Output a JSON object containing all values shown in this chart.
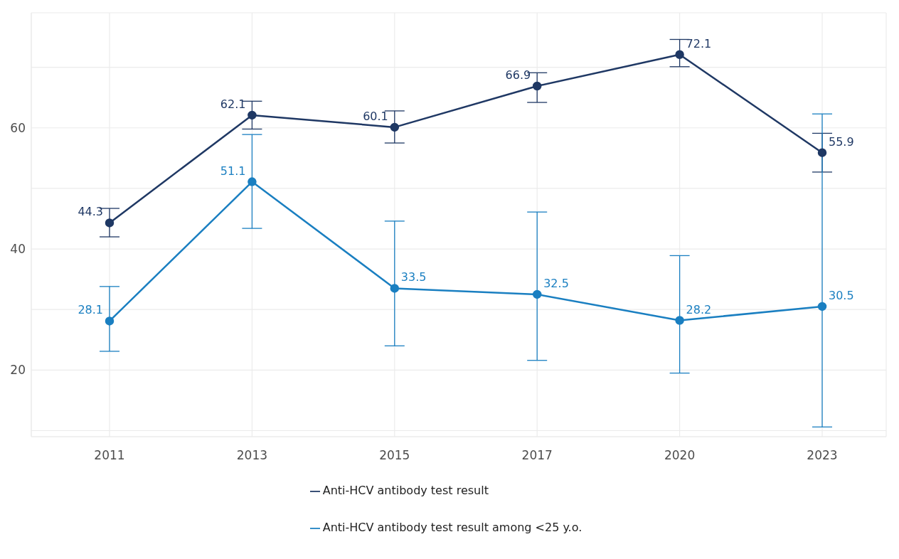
{
  "chart_data": {
    "type": "line",
    "categories": [
      "2011",
      "2013",
      "2015",
      "2017",
      "2020",
      "2023"
    ],
    "series": [
      {
        "name": "Anti-HCV antibody test result",
        "color": "#1f3864",
        "values": [
          44.3,
          62.1,
          60.1,
          66.9,
          72.1,
          55.9
        ],
        "errors": [
          [
            42.0,
            46.7
          ],
          [
            59.8,
            64.4
          ],
          [
            57.5,
            62.8
          ],
          [
            64.2,
            69.1
          ],
          [
            70.1,
            74.6
          ],
          [
            52.7,
            59.1
          ]
        ]
      },
      {
        "name": "Anti-HCV antibody test result among <25 y.o.",
        "color": "#1a7fc1",
        "values": [
          28.1,
          51.1,
          33.5,
          32.5,
          28.2,
          30.5
        ],
        "errors": [
          [
            23.1,
            33.8
          ],
          [
            43.4,
            58.9
          ],
          [
            24.0,
            44.6
          ],
          [
            21.6,
            46.1
          ],
          [
            19.5,
            38.9
          ],
          [
            10.6,
            62.3
          ]
        ]
      }
    ],
    "ylim": [
      9,
      79
    ],
    "yticks": [
      {
        "value": 10,
        "label": null
      },
      20,
      {
        "value": 30,
        "label": null
      },
      40,
      {
        "value": 50,
        "label": null
      },
      60,
      {
        "value": 70,
        "label": null
      }
    ],
    "grid": true,
    "legend": "bottom",
    "marker": "circle",
    "line_style": "solid",
    "data_labels": true
  }
}
